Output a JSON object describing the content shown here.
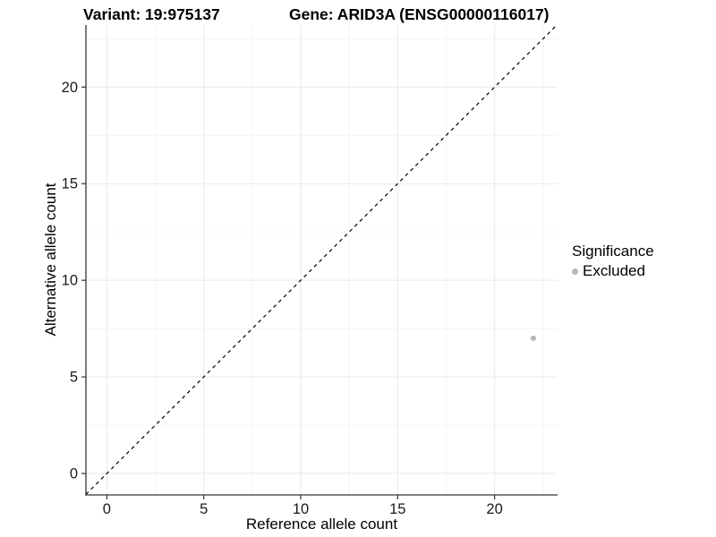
{
  "header": {
    "variant_title": "Variant: 19:975137",
    "gene_title": "Gene: ARID3A (ENSG00000116017)"
  },
  "chart_data": {
    "type": "scatter",
    "xlabel": "Reference allele count",
    "ylabel": "Alternative allele count",
    "xlim": [
      -1.08,
      23.25
    ],
    "ylim": [
      -1.11,
      23.21
    ],
    "x_ticks": [
      0,
      5,
      10,
      15,
      20
    ],
    "y_ticks": [
      0,
      5,
      10,
      15,
      20
    ],
    "x_minor_ticks": [
      2.5,
      7.5,
      12.5,
      17.5,
      22.5
    ],
    "y_minor_ticks": [
      2.5,
      7.5,
      12.5,
      17.5,
      22.5
    ],
    "grid": true,
    "reference_line": {
      "kind": "abline",
      "slope": 1,
      "intercept": 0,
      "style": "dashed"
    },
    "series": [
      {
        "name": "Excluded",
        "points": [
          {
            "x": 22,
            "y": 7
          }
        ]
      }
    ],
    "legend": {
      "title": "Significance",
      "position": "right",
      "items": [
        {
          "label": "Excluded",
          "color": "#b8b8b8"
        }
      ]
    }
  },
  "colors": {
    "point": "#b8b8b8",
    "axis_line": "#333333",
    "tick_label": "#1a1a1a",
    "grid_major": "#e9e9e9",
    "grid_minor": "#f4f4f4",
    "reference_line": "#000000",
    "background": "#ffffff"
  }
}
